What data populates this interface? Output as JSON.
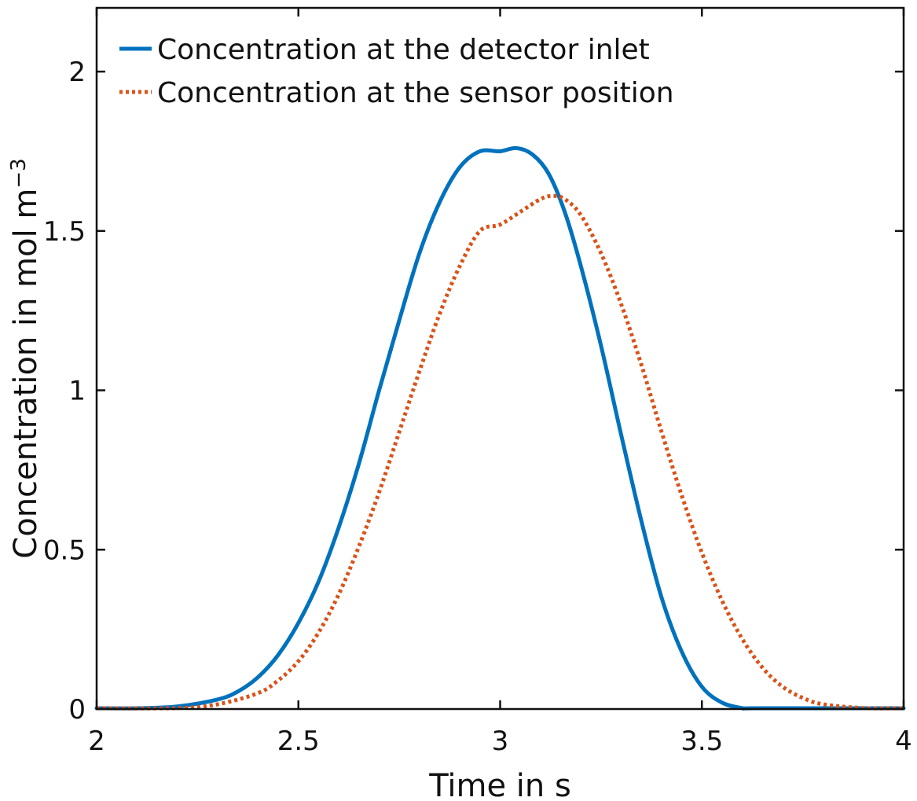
{
  "chart_data": {
    "type": "line",
    "title": "",
    "xlabel": "Time in s",
    "ylabel_main": "Concentration in mol m",
    "ylabel_superscript": "−3",
    "xlim": [
      2,
      4
    ],
    "ylim": [
      0,
      2.2
    ],
    "x_ticks": [
      2,
      2.5,
      3,
      3.5,
      4
    ],
    "x_tick_labels": [
      "2",
      "2.5",
      "3",
      "3.5",
      "4"
    ],
    "y_ticks": [
      0,
      0.5,
      1,
      1.5,
      2
    ],
    "y_tick_labels": [
      "0",
      "0.5",
      "1",
      "1.5",
      "2"
    ],
    "grid": false,
    "legend_position": "top-left",
    "series": [
      {
        "name": "Concentration at the detector inlet",
        "color": "#0072BD",
        "style": "solid",
        "x": [
          2.0,
          2.1,
          2.2,
          2.3,
          2.35,
          2.4,
          2.45,
          2.5,
          2.55,
          2.6,
          2.65,
          2.7,
          2.75,
          2.8,
          2.85,
          2.9,
          2.95,
          3.0,
          3.04,
          3.08,
          3.12,
          3.16,
          3.2,
          3.25,
          3.3,
          3.35,
          3.4,
          3.45,
          3.5,
          3.55,
          3.6,
          3.63,
          3.88,
          3.95,
          4.0
        ],
        "y": [
          0.0,
          0.002,
          0.008,
          0.03,
          0.055,
          0.1,
          0.17,
          0.27,
          0.4,
          0.57,
          0.77,
          1.0,
          1.22,
          1.43,
          1.59,
          1.7,
          1.75,
          1.75,
          1.76,
          1.74,
          1.68,
          1.56,
          1.39,
          1.14,
          0.86,
          0.59,
          0.35,
          0.18,
          0.07,
          0.02,
          0.003,
          0.0,
          0.0,
          0.0,
          0.0
        ]
      },
      {
        "name": "Concentration at the sensor position",
        "color": "#D95319",
        "style": "dotted",
        "x": [
          2.0,
          2.2,
          2.3,
          2.4,
          2.45,
          2.5,
          2.55,
          2.6,
          2.65,
          2.7,
          2.75,
          2.8,
          2.85,
          2.9,
          2.95,
          3.0,
          3.05,
          3.1,
          3.13,
          3.16,
          3.2,
          3.25,
          3.3,
          3.35,
          3.4,
          3.45,
          3.5,
          3.55,
          3.6,
          3.65,
          3.7,
          3.75,
          3.8,
          3.9,
          4.0
        ],
        "y": [
          0.0,
          0.003,
          0.015,
          0.05,
          0.09,
          0.15,
          0.24,
          0.36,
          0.51,
          0.68,
          0.87,
          1.06,
          1.24,
          1.39,
          1.5,
          1.52,
          1.56,
          1.6,
          1.61,
          1.6,
          1.55,
          1.43,
          1.27,
          1.08,
          0.87,
          0.67,
          0.49,
          0.34,
          0.22,
          0.13,
          0.07,
          0.035,
          0.015,
          0.003,
          0.0
        ]
      }
    ]
  }
}
